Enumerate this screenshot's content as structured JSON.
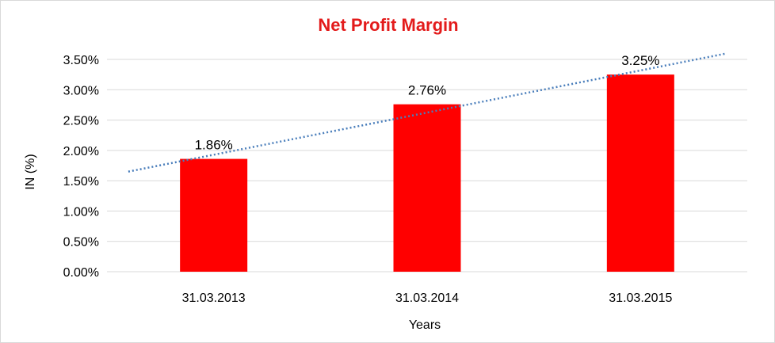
{
  "chart_data": {
    "type": "bar",
    "title": "Net Profit Margin",
    "xlabel": "Years",
    "ylabel": "IN (%)",
    "categories": [
      "31.03.2013",
      "31.03.2014",
      "31.03.2015"
    ],
    "values": [
      1.86,
      2.76,
      3.25
    ],
    "data_labels": [
      "1.86%",
      "2.76%",
      "3.25%"
    ],
    "ylim": [
      0,
      3.5
    ],
    "yticks": [
      0,
      0.5,
      1.0,
      1.5,
      2.0,
      2.5,
      3.0,
      3.5
    ],
    "ytick_labels": [
      "0.00%",
      "0.50%",
      "1.00%",
      "1.50%",
      "2.00%",
      "2.50%",
      "3.00%",
      "3.50%"
    ],
    "grid": true,
    "trendline": "linear",
    "colors": {
      "bar": "#ff0000",
      "title": "#e31b1b",
      "trendline": "#4a7ebb",
      "grid": "#d9d9d9"
    }
  }
}
